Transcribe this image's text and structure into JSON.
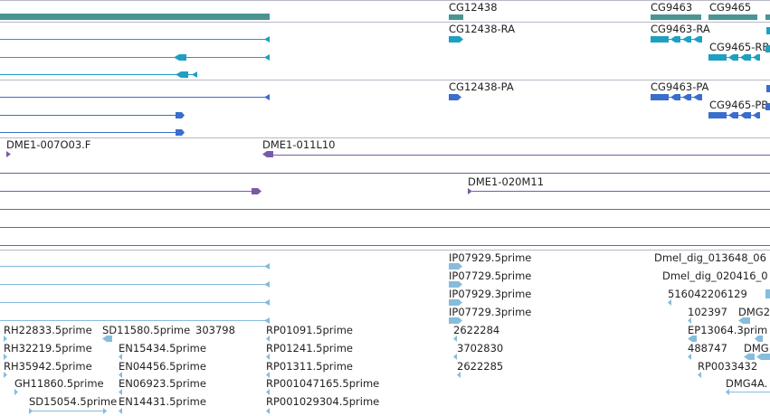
{
  "colors": {
    "gene": "#4a9494",
    "transcript": "#1ea0c0",
    "protein": "#3a6ecc",
    "clone": "#7a5aa8",
    "est": "#86bcdc",
    "divider": "#b8b8c8"
  },
  "genes": [
    {
      "label": "CG12438"
    },
    {
      "label": "CG9463"
    },
    {
      "label": "CG9465"
    }
  ],
  "transcripts": [
    {
      "label": "CG12438-RA"
    },
    {
      "label": "CG9463-RA"
    },
    {
      "label": "CG9465-RB"
    }
  ],
  "proteins": [
    {
      "label": "CG12438-PA"
    },
    {
      "label": "CG9463-PA"
    },
    {
      "label": "CG9465-PB"
    }
  ],
  "clones": [
    {
      "label": "DME1-007O03.F"
    },
    {
      "label": "DME1-011L10"
    },
    {
      "label": "DME1-020M11"
    }
  ],
  "ests": [
    {
      "label": "IP07929.5prime"
    },
    {
      "label": "IP07729.5prime"
    },
    {
      "label": "IP07929.3prime"
    },
    {
      "label": "IP07729.3prime"
    },
    {
      "label": "RH22833.5prime"
    },
    {
      "label": "SD11580.5prime"
    },
    {
      "label": "303798"
    },
    {
      "label": "RP01091.5prime"
    },
    {
      "label": "2622284"
    },
    {
      "label": "RH32219.5prime"
    },
    {
      "label": "EN15434.5prime"
    },
    {
      "label": "RP01241.5prime"
    },
    {
      "label": "3702830"
    },
    {
      "label": "RH35942.5prime"
    },
    {
      "label": "EN04456.5prime"
    },
    {
      "label": "RP01311.5prime"
    },
    {
      "label": "2622285"
    },
    {
      "label": "GH11860.5prime"
    },
    {
      "label": "EN06923.5prime"
    },
    {
      "label": "RP001047165.5prime"
    },
    {
      "label": "SD15054.5prime"
    },
    {
      "label": "EN14431.5prime"
    },
    {
      "label": "RP001029304.5prime"
    },
    {
      "label": "Dmel_dig_013648_06"
    },
    {
      "label": "Dmel_dig_020416_0"
    },
    {
      "label": "516042206129"
    },
    {
      "label": "102397"
    },
    {
      "label": "DMG2"
    },
    {
      "label": "EP13064.3prim"
    },
    {
      "label": "488747"
    },
    {
      "label": "DMG"
    },
    {
      "label": "RP0033432"
    },
    {
      "label": "DMG4A."
    }
  ]
}
